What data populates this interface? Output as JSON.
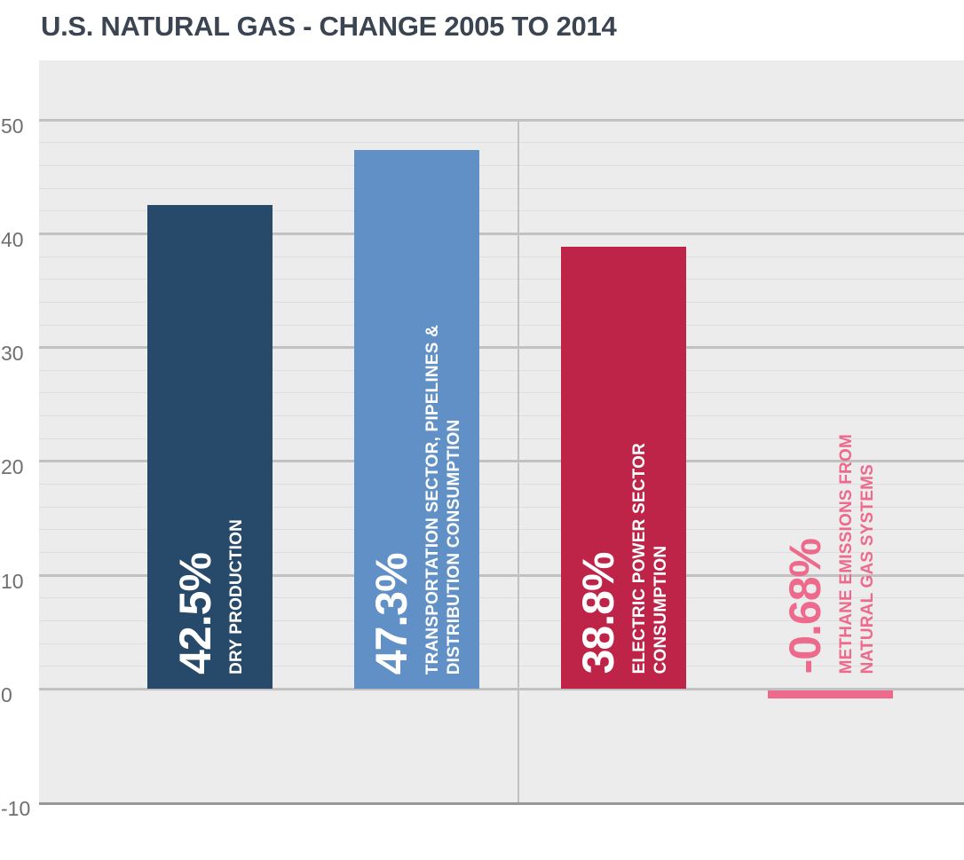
{
  "title": "U.S. NATURAL GAS - CHANGE 2005 TO 2014",
  "chart_data": {
    "type": "bar",
    "title": "U.S. NATURAL GAS - CHANGE 2005 TO 2014",
    "xlabel": "",
    "ylabel": "",
    "ylim": [
      -10,
      55.2
    ],
    "grid": true,
    "legend": false,
    "categories": [
      "DRY PRODUCTION",
      "TRANSPORTATION SECTOR, PIPELINES & DISTRIBUTION CONSUMPTION",
      "ELECTRIC POWER SECTOR CONSUMPTION",
      "METHANE EMISSIONS FROM NATURAL GAS SYSTEMS"
    ],
    "values": [
      42.5,
      47.3,
      38.8,
      -0.68
    ],
    "bars": [
      {
        "value": 42.5,
        "value_label": "42.5%",
        "label_lines": [
          "DRY PRODUCTION"
        ],
        "color": "#274a6b",
        "text_color": "#ffffff"
      },
      {
        "value": 47.3,
        "value_label": "47.3%",
        "label_lines": [
          "TRANSPORTATION SECTOR, PIPELINES &",
          "DISTRIBUTION CONSUMPTION"
        ],
        "color": "#6090c5",
        "text_color": "#ffffff"
      },
      {
        "value": 38.8,
        "value_label": "38.8%",
        "label_lines": [
          "ELECTRIC POWER SECTOR",
          "CONSUMPTION"
        ],
        "color": "#bd2448",
        "text_color": "#ffffff"
      },
      {
        "value": -0.68,
        "value_label": "-0.68%",
        "label_lines": [
          "METHANE EMISSIONS FROM",
          "NATURAL GAS SYSTEMS"
        ],
        "color": "#ee6a8d",
        "text_color": "#ee6a8d"
      }
    ],
    "y_axis": {
      "ticks": [
        {
          "value": 50,
          "label": "50"
        },
        {
          "value": 40,
          "label": "40"
        },
        {
          "value": 30,
          "label": "30"
        },
        {
          "value": 20,
          "label": "20"
        },
        {
          "value": 10,
          "label": "10"
        },
        {
          "value": 0,
          "label": "0"
        },
        {
          "value": -10,
          "label": "-10"
        }
      ],
      "minor_step": 2,
      "minor_range": [
        0,
        50
      ]
    }
  },
  "colors": {
    "background": "#ffffff",
    "plot_background": "#ececec",
    "major_gridline": "#c1c1c1",
    "minor_gridline": "#dedede",
    "axis_bottom_border": "#979797",
    "title_text": "#3b4552",
    "tick_text": "#6f6f6f"
  }
}
